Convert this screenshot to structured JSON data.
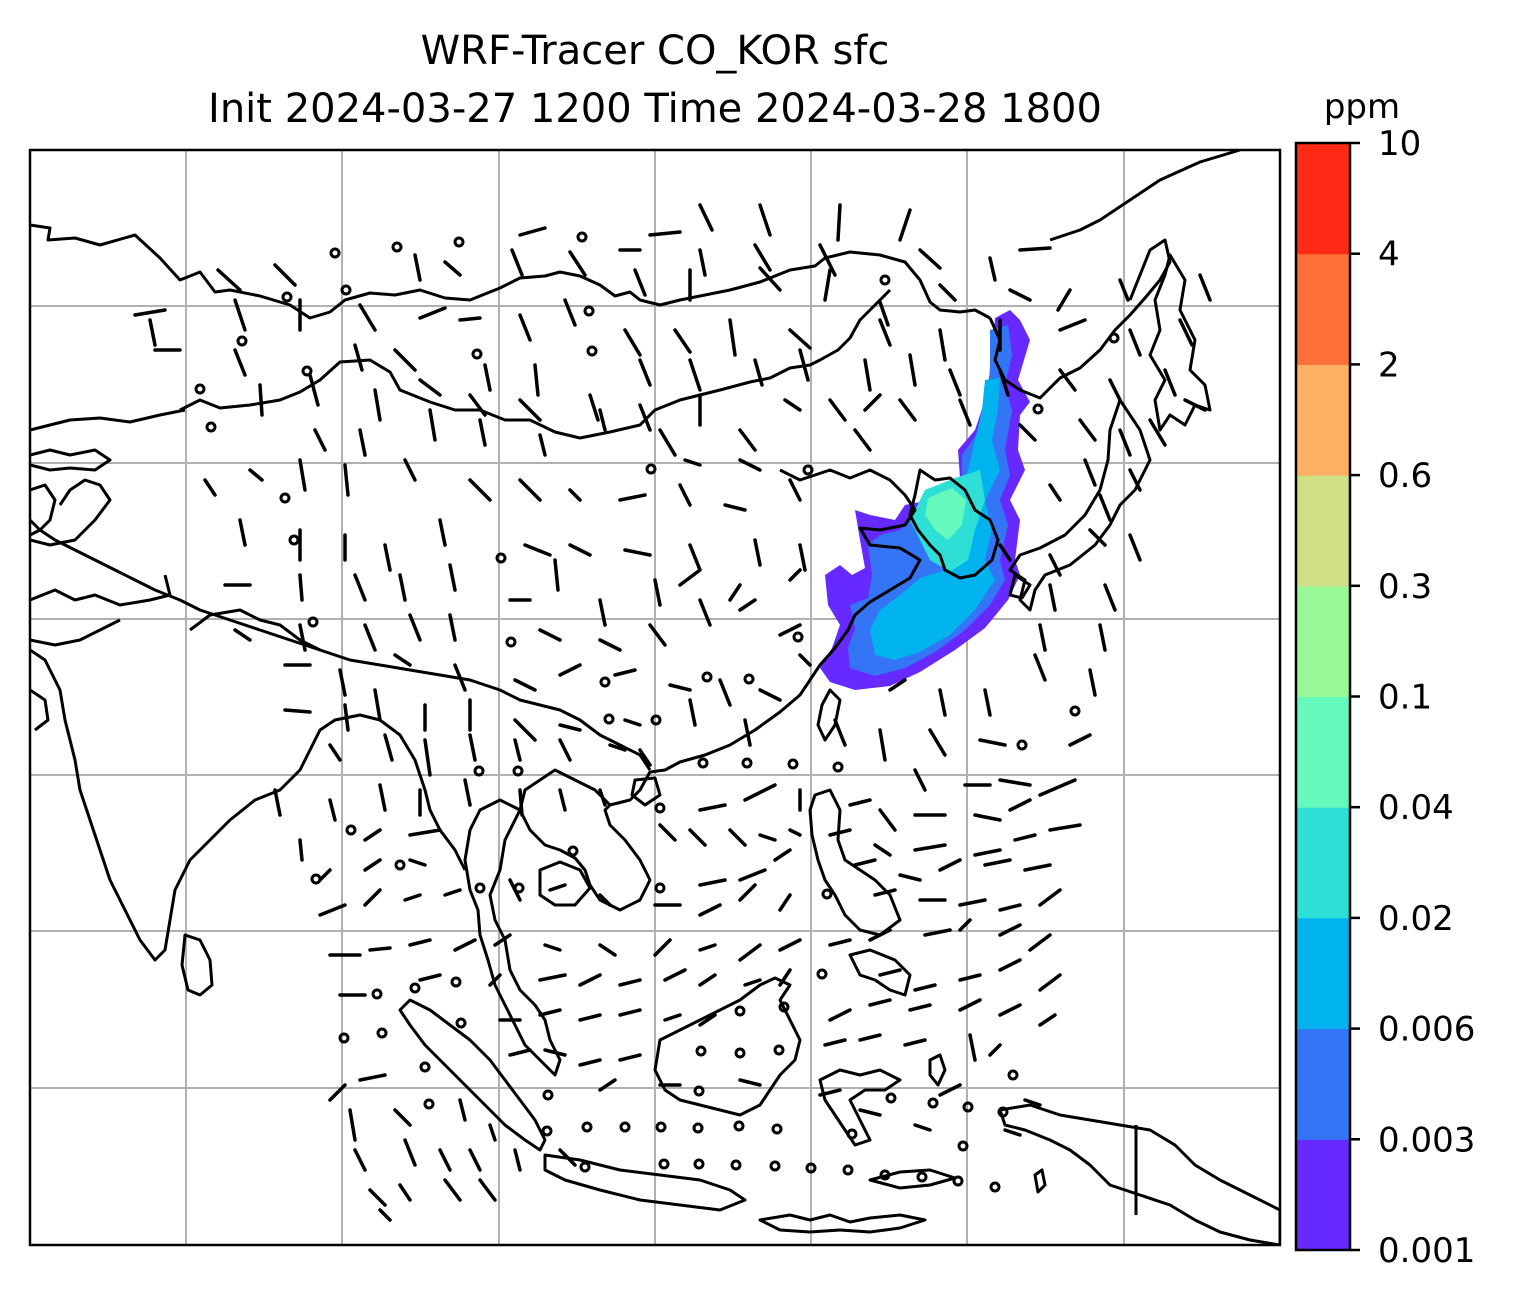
{
  "title": {
    "line1": "WRF-Tracer CO_KOR sfc",
    "line2": "Init 2024-03-27 1200 Time 2024-03-28 1800"
  },
  "colorbar": {
    "unit": "ppm",
    "levels": [
      "0.001",
      "0.003",
      "0.006",
      "0.02",
      "0.04",
      "0.1",
      "0.3",
      "0.6",
      "2",
      "4",
      "10"
    ],
    "colors": [
      "#6629ff",
      "#3375f5",
      "#00b3ee",
      "#2edfd6",
      "#66f9bd",
      "#99f998",
      "#cfdf85",
      "#ffb063",
      "#ff7038",
      "#ff2a16"
    ]
  },
  "map": {
    "gridlines": true,
    "coastline_color": "#000000",
    "grid_color": "#b0b0b0",
    "plume_tracer": "CO_KOR",
    "wind_barbs": true
  }
}
